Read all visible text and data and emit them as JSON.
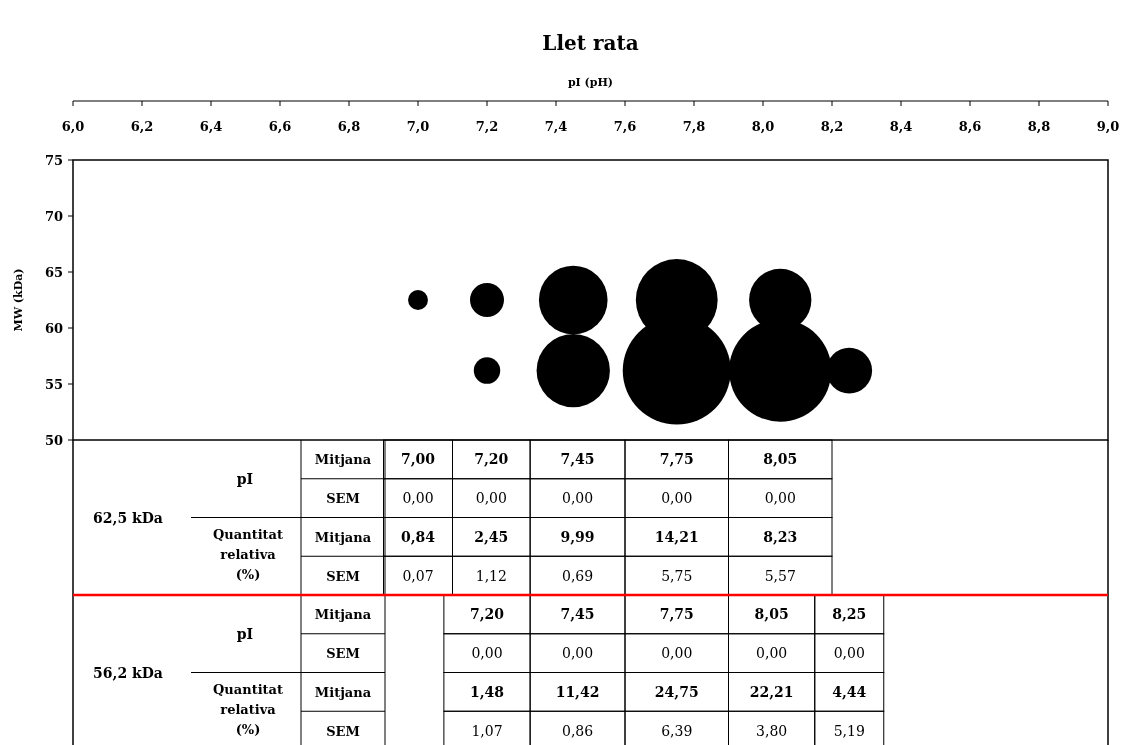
{
  "chart_data": {
    "type": "bubble",
    "title": "Llet rata",
    "xlabel": "pI (pH)",
    "ylabel": "MW (kDa)",
    "xlim": [
      6,
      9
    ],
    "xticks": [
      {
        "value": 6,
        "label": "6,0"
      },
      {
        "value": 6.2,
        "label": "6,2"
      },
      {
        "value": 6.4,
        "label": "6,4"
      },
      {
        "value": 6.6,
        "label": "6,6"
      },
      {
        "value": 6.8,
        "label": "6,8"
      },
      {
        "value": 7,
        "label": "7,0"
      },
      {
        "value": 7.2,
        "label": "7,2"
      },
      {
        "value": 7.4,
        "label": "7,4"
      },
      {
        "value": 7.6,
        "label": "7,6"
      },
      {
        "value": 7.8,
        "label": "7,8"
      },
      {
        "value": 8,
        "label": "8,0"
      },
      {
        "value": 8.2,
        "label": "8,2"
      },
      {
        "value": 8.4,
        "label": "8,4"
      },
      {
        "value": 8.6,
        "label": "8,6"
      },
      {
        "value": 8.8,
        "label": "8,8"
      },
      {
        "value": 9,
        "label": "9,0"
      }
    ],
    "ylim": [
      50,
      75
    ],
    "yticks": [
      50,
      55,
      60,
      65,
      70,
      75
    ],
    "grid": false,
    "series": [
      {
        "color": "#000000",
        "x": [
          7,
          7.2,
          7.45,
          7.75,
          8.05
        ],
        "values": [
          62.5,
          62.5,
          62.5,
          62.5,
          62.5
        ],
        "sizes": [
          0.034,
          0.099,
          0.404,
          0.574,
          0.333
        ]
      },
      {
        "color": "#000000",
        "x": [
          7.2,
          7.45,
          7.75,
          8.05,
          8.25
        ],
        "values": [
          56.2,
          56.2,
          56.2,
          56.2,
          56.2
        ],
        "sizes": [
          0.06,
          0.461,
          1,
          0.897,
          0.179
        ]
      }
    ],
    "annotations": [
      "62,5 kDa",
      "56,2 kDa",
      "pI",
      "Quantitat relativa (%)",
      "Mitjana",
      "SEM",
      "7,00",
      "7,20",
      "7,45",
      "7,75",
      "8,05",
      "0,00",
      "0,00",
      "0,00",
      "0,00",
      "0,00",
      "0,84",
      "2,45",
      "9,99",
      "14,21",
      "8,23",
      "0,07",
      "1,12",
      "0,69",
      "5,75",
      "5,57",
      "7,20",
      "7,45",
      "7,75",
      "8,05",
      "8,25",
      "0,00",
      "0,00",
      "0,00",
      "0,00",
      "0,00",
      "1,48",
      "11,42",
      "24,75",
      "22,21",
      "4,44",
      "1,07",
      "0,86",
      "6,39",
      "3,80",
      "5,19"
    ]
  }
}
